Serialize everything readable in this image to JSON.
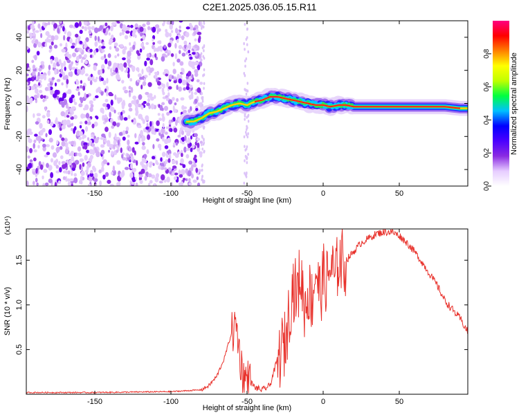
{
  "title": "C2E1.2025.036.05.15.R11",
  "chart_data": [
    {
      "type": "heatmap",
      "xlabel": "Height of straight line (km)",
      "ylabel": "Frequency (Hz)",
      "xlim": [
        -195,
        95
      ],
      "ylim": [
        -50,
        50
      ],
      "x_ticks": [
        -150,
        -100,
        -50,
        0,
        50
      ],
      "y_ticks": [
        -40,
        -20,
        0,
        20,
        40
      ],
      "colorbar": {
        "label": "Normalized spectral amplitude",
        "range": [
          0,
          1
        ],
        "ticks": [
          0.0,
          0.2,
          0.4,
          0.6,
          0.8
        ],
        "colors": [
          "#ffffff",
          "#e6ccff",
          "#8a2be2",
          "#4b00ff",
          "#0000ff",
          "#00c0ff",
          "#00ff40",
          "#c0ff00",
          "#ffff00",
          "#ff8000",
          "#ff0000",
          "#ff0080"
        ]
      },
      "ridge": {
        "x": [
          -90,
          -85,
          -80,
          -75,
          -70,
          -65,
          -60,
          -55,
          -50,
          -45,
          -40,
          -35,
          -30,
          -25,
          -20,
          -15,
          -10,
          -5,
          0,
          5,
          10,
          15,
          20,
          30,
          40,
          50,
          60,
          70,
          80,
          90,
          95
        ],
        "y": [
          -11,
          -11,
          -9,
          -6,
          -5,
          -3,
          -1,
          0,
          -1,
          1,
          2,
          4,
          4,
          3,
          2,
          1,
          0,
          -1,
          -1,
          -2,
          -1,
          -1,
          -2,
          -2,
          -2,
          -2,
          -2,
          -2,
          -2,
          -3,
          -3
        ]
      },
      "noise_region_x": [
        -195,
        -90
      ]
    },
    {
      "type": "line",
      "xlabel": "Height of straight line (km)",
      "ylabel": "SNR (10 * v/v)",
      "y_multiplier": "(x10⁴)",
      "xlim": [
        -195,
        95
      ],
      "ylim": [
        0,
        1.85
      ],
      "x_ticks": [
        -150,
        -100,
        -50,
        0,
        50
      ],
      "y_ticks": [
        0.5,
        1.0,
        1.5
      ],
      "color": "#e8302a",
      "x": [
        -195,
        -150,
        -100,
        -80,
        -75,
        -70,
        -65,
        -60,
        -57,
        -55,
        -53,
        -50,
        -45,
        -40,
        -35,
        -30,
        -27,
        -25,
        -22,
        -20,
        -17,
        -15,
        -12,
        -10,
        -7,
        -5,
        -2,
        0,
        3,
        5,
        8,
        10,
        15,
        20,
        25,
        30,
        35,
        40,
        45,
        50,
        55,
        60,
        65,
        70,
        75,
        80,
        85,
        90,
        95
      ],
      "y": [
        0.02,
        0.02,
        0.03,
        0.05,
        0.1,
        0.2,
        0.4,
        0.7,
        0.8,
        0.5,
        0.25,
        0.2,
        0.08,
        0.05,
        0.1,
        0.4,
        0.55,
        0.6,
        1.0,
        1.25,
        1.15,
        1.4,
        1.0,
        1.2,
        1.1,
        1.45,
        1.15,
        1.35,
        1.3,
        1.5,
        1.3,
        1.55,
        1.5,
        1.6,
        1.7,
        1.75,
        1.8,
        1.82,
        1.82,
        1.78,
        1.7,
        1.6,
        1.48,
        1.35,
        1.22,
        1.05,
        0.95,
        0.85,
        0.7
      ]
    }
  ]
}
